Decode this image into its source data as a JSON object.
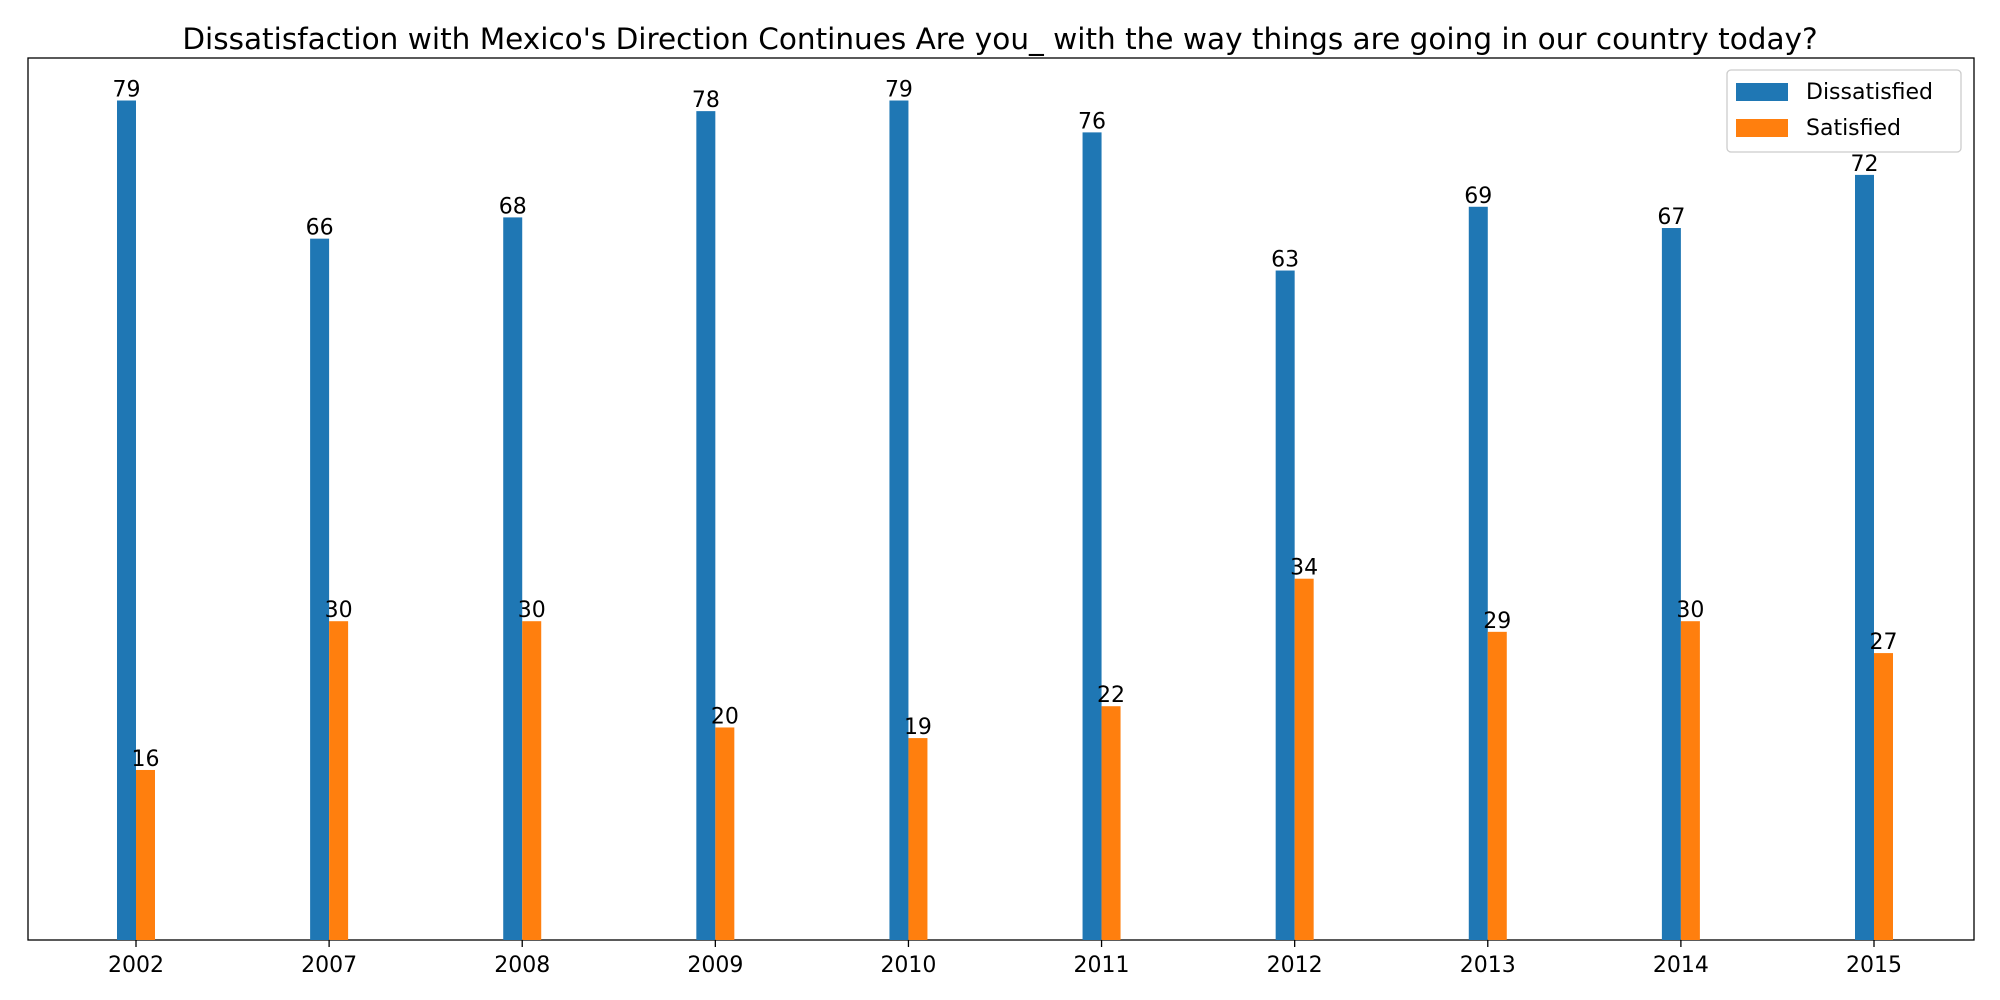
{
  "chart_data": {
    "type": "bar",
    "title": "Dissatisfaction with Mexico's Direction Continues Are you_ with the way things are going in our country today?",
    "xlabel": "",
    "ylabel": "",
    "categories": [
      "2002",
      "2007",
      "2008",
      "2009",
      "2010",
      "2011",
      "2012",
      "2013",
      "2014",
      "2015"
    ],
    "series": [
      {
        "name": "Dissatisfied",
        "color": "#1f77b4",
        "values": [
          79,
          66,
          68,
          78,
          79,
          76,
          63,
          69,
          67,
          72
        ]
      },
      {
        "name": "Satisfied",
        "color": "#ff7f0e",
        "values": [
          16,
          30,
          30,
          20,
          19,
          22,
          34,
          29,
          30,
          27
        ]
      }
    ],
    "ylim": [
      0,
      83
    ],
    "y_axis_visible": false,
    "grid": false,
    "legend_position": "top-right",
    "data_labels": true
  }
}
